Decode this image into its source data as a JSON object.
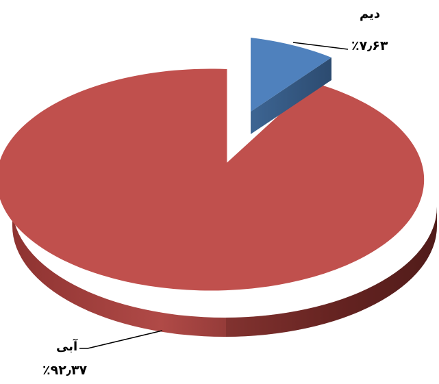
{
  "chart_data": {
    "type": "pie",
    "style": "3d-exploded",
    "slices": [
      {
        "label": "آبی",
        "value": 92.37,
        "value_text": "٪۹۲٫۳۷",
        "color": "#c0504d"
      },
      {
        "label": "دیم",
        "value": 7.63,
        "value_text": "٪۷٫۶۳",
        "color": "#4f81bd"
      }
    ],
    "legend": "none"
  }
}
